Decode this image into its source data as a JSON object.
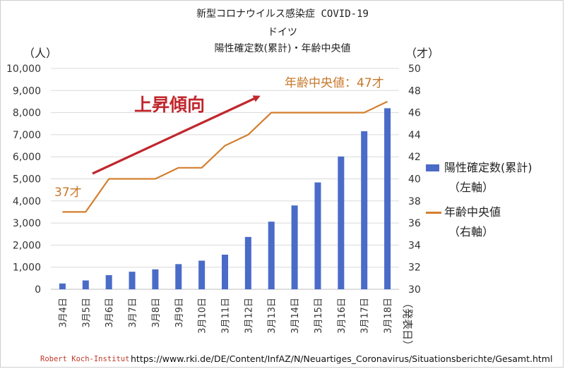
{
  "chart_data": {
    "type": "bar+line",
    "title_line1": "新型コロナウイルス感染症 COVID-19",
    "title_line2": "ドイツ",
    "title_line3": "陽性確定数(累計)・年齢中央値",
    "left_axis_unit": "（人）",
    "right_axis_unit": "（才）",
    "xlabel": "（発表日）",
    "categories": [
      "3月4日",
      "3月5日",
      "3月6日",
      "3月7日",
      "3月8日",
      "3月9日",
      "3月10日",
      "3月11日",
      "3月12日",
      "3月13日",
      "3月14日",
      "3月15日",
      "3月16日",
      "3月17日",
      "3月18日"
    ],
    "y_left_ticks": [
      "0",
      "1,000",
      "2,000",
      "3,000",
      "4,000",
      "5,000",
      "6,000",
      "7,000",
      "8,000",
      "9,000",
      "10,000"
    ],
    "y_left_lim": [
      0,
      10000
    ],
    "y_right_ticks": [
      "30",
      "32",
      "34",
      "36",
      "38",
      "40",
      "42",
      "44",
      "46",
      "48",
      "50"
    ],
    "y_right_lim": [
      30,
      50
    ],
    "series": [
      {
        "name": "陽性確定数(累計)",
        "axis_note": "（左軸）",
        "type": "bar",
        "color": "#4a6bc7",
        "values": [
          262,
          400,
          639,
          795,
          902,
          1139,
          1296,
          1567,
          2369,
          3062,
          3795,
          4838,
          6012,
          7156,
          8198
        ]
      },
      {
        "name": "年齢中央値",
        "axis_note": "（右軸）",
        "type": "line",
        "color": "#d47f2e",
        "values": [
          37,
          37,
          40,
          40,
          40,
          41,
          41,
          43,
          44,
          46,
          46,
          46,
          46,
          46,
          47
        ]
      }
    ],
    "annotations": {
      "trend": "上昇傾向",
      "start_label": "37才",
      "end_label": "年齢中央値：47才",
      "trend_color": "#c0272d",
      "label_color": "#c7772a"
    },
    "grid": true
  },
  "source": {
    "org": "Robert Koch-Institut",
    "url": "https://www.rki.de/DE/Content/InfAZ/N/Neuartiges_Coronavirus/Situationsberichte/Gesamt.html"
  }
}
